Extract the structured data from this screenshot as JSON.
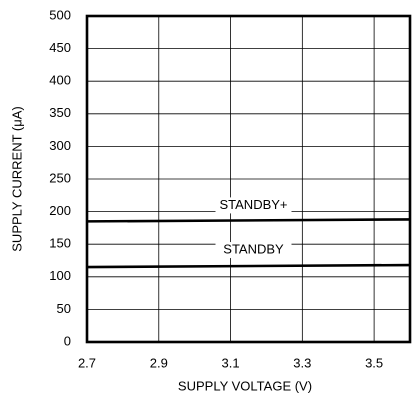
{
  "chart_data": {
    "type": "line",
    "xlabel": "SUPPLY VOLTAGE (V)",
    "ylabel": "SUPPLY CURRENT (μA)",
    "x": [
      2.7,
      3.6
    ],
    "series": [
      {
        "name": "STANDBY+",
        "color": "#000000",
        "values": [
          185,
          188
        ]
      },
      {
        "name": "STANDBY",
        "color": "#000000",
        "values": [
          115,
          118
        ]
      }
    ],
    "xlim": [
      2.7,
      3.6
    ],
    "xticks": [
      2.7,
      2.9,
      3.1,
      3.3,
      3.5
    ],
    "ylim": [
      0,
      500
    ],
    "yticks": [
      0,
      50,
      100,
      150,
      200,
      250,
      300,
      350,
      400,
      450,
      500
    ],
    "grid": true
  }
}
